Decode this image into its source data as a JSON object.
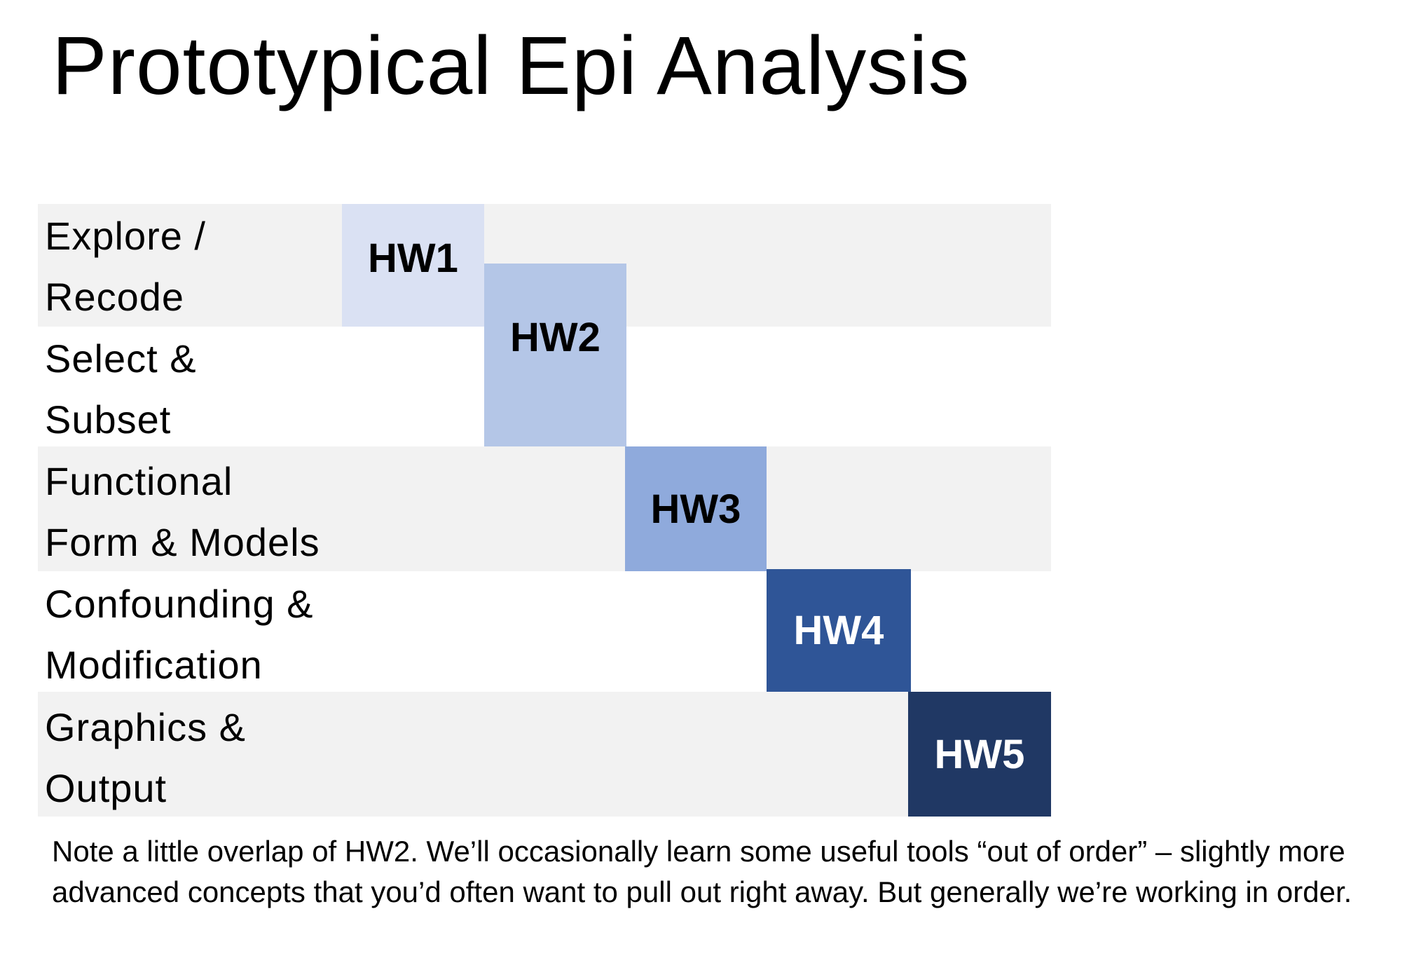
{
  "title": "Prototypical Epi Analysis",
  "rows": [
    {
      "line1": "Explore /",
      "line2": "Recode"
    },
    {
      "line1": "Select &",
      "line2": "Subset"
    },
    {
      "line1": "Functional",
      "line2": "Form & Models"
    },
    {
      "line1": "Confounding &",
      "line2": "Modification"
    },
    {
      "line1": "Graphics &",
      "line2": "Output"
    }
  ],
  "homeworks": [
    {
      "label": "HW1",
      "color": "#dae1f3",
      "text_color": "#000000"
    },
    {
      "label": "HW2",
      "color": "#b4c6e7",
      "text_color": "#000000"
    },
    {
      "label": "HW3",
      "color": "#8faadc",
      "text_color": "#000000"
    },
    {
      "label": "HW4",
      "color": "#2f5597",
      "text_color": "#ffffff"
    },
    {
      "label": "HW5",
      "color": "#203864",
      "text_color": "#ffffff"
    }
  ],
  "band_color": "#f2f2f2",
  "note": "Note a little overlap of HW2. We’ll occasionally learn some useful tools “out of order” – slightly more advanced concepts that you’d often want to pull out right away. But generally we’re working in order."
}
